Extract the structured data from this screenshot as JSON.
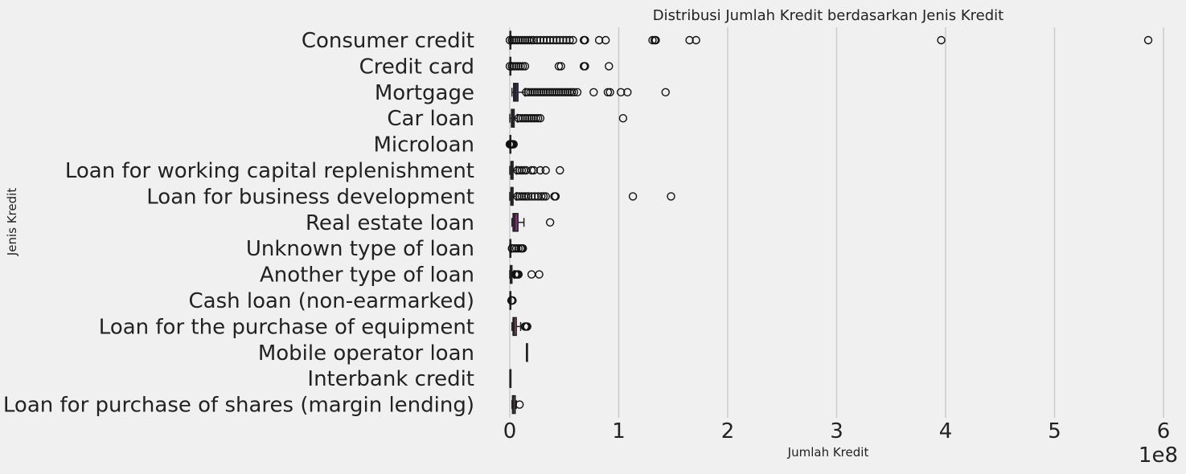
{
  "chart_data": {
    "type": "boxplot",
    "orientation": "horizontal",
    "title": "Distribusi Jumlah Kredit berdasarkan Jenis Kredit",
    "xlabel": "Jumlah Kredit",
    "ylabel": "Jenis Kredit",
    "x_offset_label": "1e8",
    "xlim": [
      -0.02,
      6.05
    ],
    "xticks": [
      0,
      1,
      2,
      3,
      4,
      5,
      6
    ],
    "xtick_labels": [
      "0",
      "1",
      "2",
      "3",
      "4",
      "5",
      "6"
    ],
    "grid": "vertical",
    "categories": [
      "Consumer credit",
      "Credit card",
      "Mortgage",
      "Car loan",
      "Microloan",
      "Loan for working capital replenishment",
      "Loan for business development",
      "Real estate loan",
      "Unknown type of loan",
      "Another type of loan",
      "Cash loan (non-earmarked)",
      "Loan for the purchase of equipment",
      "Mobile operator loan",
      "Interbank credit",
      "Loan for purchase of shares (margin lending)"
    ],
    "colors": [
      "#1e1433",
      "#2a1d4a",
      "#3b2a63",
      "#4a2f73",
      "#59307a",
      "#672f7e",
      "#762e80",
      "#84307f",
      "#93347c",
      "#a33a7c",
      "#b3447d",
      "#c15682",
      "#cd6b88",
      "#d98a95",
      "#e3aaa7"
    ],
    "boxes": [
      {
        "whislo": 0.0,
        "q1": 0.002,
        "med": 0.004,
        "q3": 0.008,
        "whishi": 0.016,
        "outliers": [
          0.0,
          0.02,
          0.04,
          0.06,
          0.08,
          0.1,
          0.12,
          0.14,
          0.16,
          0.18,
          0.2,
          0.22,
          0.25,
          0.28,
          0.31,
          0.34,
          0.37,
          0.4,
          0.43,
          0.46,
          0.49,
          0.52,
          0.55,
          0.58,
          0.68,
          0.69,
          0.82,
          0.88,
          1.31,
          1.33,
          1.34,
          1.65,
          1.71,
          3.96,
          5.86
        ]
      },
      {
        "whislo": 0.0,
        "q1": 0.002,
        "med": 0.004,
        "q3": 0.007,
        "whishi": 0.012,
        "outliers": [
          0.0,
          0.02,
          0.04,
          0.06,
          0.08,
          0.1,
          0.12,
          0.14,
          0.45,
          0.47,
          0.68,
          0.69,
          0.91
        ]
      },
      {
        "whislo": 0.02,
        "q1": 0.035,
        "med": 0.05,
        "q3": 0.075,
        "whishi": 0.14,
        "outliers": [
          0.15,
          0.17,
          0.19,
          0.21,
          0.23,
          0.25,
          0.27,
          0.29,
          0.31,
          0.33,
          0.35,
          0.37,
          0.39,
          0.41,
          0.43,
          0.45,
          0.47,
          0.49,
          0.51,
          0.53,
          0.55,
          0.57,
          0.59,
          0.62,
          0.77,
          0.9,
          0.92,
          1.02,
          1.08,
          1.43
        ]
      },
      {
        "whislo": 0.0,
        "q1": 0.015,
        "med": 0.025,
        "q3": 0.04,
        "whishi": 0.07,
        "outliers": [
          0.08,
          0.1,
          0.12,
          0.14,
          0.16,
          0.18,
          0.2,
          0.22,
          0.24,
          0.26,
          0.28,
          1.04
        ]
      },
      {
        "whislo": 0.0,
        "q1": 0.002,
        "med": 0.004,
        "q3": 0.006,
        "whishi": 0.01,
        "outliers": [
          0.0,
          0.005,
          0.01,
          0.015,
          0.02,
          0.025,
          0.03,
          0.035
        ]
      },
      {
        "whislo": 0.0,
        "q1": 0.01,
        "med": 0.018,
        "q3": 0.03,
        "whishi": 0.06,
        "outliers": [
          0.07,
          0.09,
          0.11,
          0.13,
          0.15,
          0.2,
          0.22,
          0.28,
          0.33,
          0.46
        ]
      },
      {
        "whislo": 0.0,
        "q1": 0.01,
        "med": 0.018,
        "q3": 0.03,
        "whishi": 0.06,
        "outliers": [
          0.07,
          0.09,
          0.11,
          0.13,
          0.15,
          0.17,
          0.2,
          0.23,
          0.26,
          0.29,
          0.31,
          0.33,
          0.41,
          0.42,
          1.13,
          1.48
        ]
      },
      {
        "whislo": 0.02,
        "q1": 0.03,
        "med": 0.045,
        "q3": 0.075,
        "whishi": 0.13,
        "outliers": [
          0.37
        ]
      },
      {
        "whislo": 0.0,
        "q1": 0.002,
        "med": 0.004,
        "q3": 0.008,
        "whishi": 0.015,
        "outliers": [
          0.02,
          0.04,
          0.06,
          0.08,
          0.1,
          0.11,
          0.12
        ]
      },
      {
        "whislo": 0.0,
        "q1": 0.005,
        "med": 0.01,
        "q3": 0.02,
        "whishi": 0.04,
        "outliers": [
          0.05,
          0.06,
          0.07,
          0.08,
          0.2,
          0.27
        ]
      },
      {
        "whislo": 0.0,
        "q1": 0.002,
        "med": 0.004,
        "q3": 0.008,
        "whishi": 0.012,
        "outliers": [
          0.015,
          0.02,
          0.025
        ]
      },
      {
        "whislo": 0.02,
        "q1": 0.03,
        "med": 0.04,
        "q3": 0.06,
        "whishi": 0.1,
        "outliers": [
          0.14,
          0.16,
          0.15
        ]
      },
      {
        "whislo": 0.155,
        "q1": 0.155,
        "med": 0.155,
        "q3": 0.155,
        "whishi": 0.155,
        "outliers": []
      },
      {
        "whislo": 0.003,
        "q1": 0.003,
        "med": 0.003,
        "q3": 0.003,
        "whishi": 0.003,
        "outliers": []
      },
      {
        "whislo": 0.02,
        "q1": 0.025,
        "med": 0.035,
        "q3": 0.05,
        "whishi": 0.06,
        "outliers": [
          0.09
        ]
      }
    ]
  }
}
